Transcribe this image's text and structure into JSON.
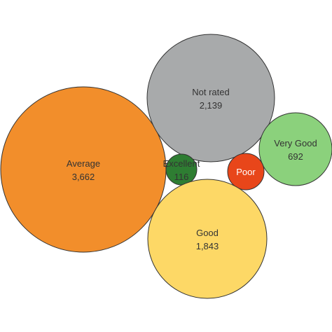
{
  "chart_data": {
    "type": "bubble",
    "title": "",
    "colors": {
      "Average": "#F28E2B",
      "Not rated": "#A8AAAB",
      "Very Good": "#8BD17C",
      "Excellent": "#2E7D32",
      "Poor": "#E8461A",
      "Good": "#FDD866",
      "stroke": "#333333"
    },
    "bubbles": [
      {
        "label": "Average",
        "value": 3662,
        "value_text": "3,662"
      },
      {
        "label": "Not rated",
        "value": 2139,
        "value_text": "2,139"
      },
      {
        "label": "Very Good",
        "value": 692,
        "value_text": "692"
      },
      {
        "label": "Excellent",
        "value": 116,
        "value_text": "116"
      },
      {
        "label": "Poor",
        "value": 0,
        "value_text": ""
      },
      {
        "label": "Good",
        "value": 1843,
        "value_text": "1,843"
      }
    ]
  }
}
